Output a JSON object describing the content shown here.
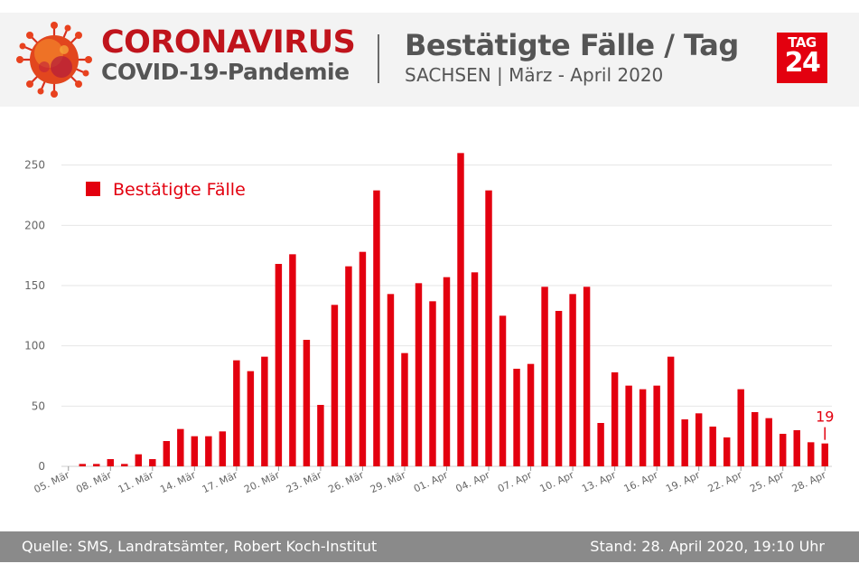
{
  "header": {
    "title_main": "CORONAVIRUS",
    "title_sub": "COVID-19-Pandemie",
    "chart_title": "Bestätigte Fälle / Tag",
    "chart_subtitle": "SACHSEN | März - April 2020",
    "logo_top": "TAG",
    "logo_bottom": "24",
    "logo_icon": "virus-icon"
  },
  "footer": {
    "source": "Quelle: SMS, Landratsämter, Robert Koch-Institut",
    "stand": "Stand: 28. April 2020, 19:10 Uhr"
  },
  "colors": {
    "bar": "#e3000f",
    "title_red": "#c0141c",
    "text_gray": "#555555",
    "grid": "#e6e6e6",
    "footer_bg": "#8a8a8a"
  },
  "chart_data": {
    "type": "bar",
    "categories": [
      "05. Mär",
      "06. Mär",
      "07. Mär",
      "08. Mär",
      "09. Mär",
      "10. Mär",
      "11. Mär",
      "12. Mär",
      "13. Mär",
      "14. Mär",
      "15. Mär",
      "16. Mär",
      "17. Mär",
      "18. Mär",
      "19. Mär",
      "20. Mär",
      "21. Mär",
      "22. Mär",
      "23. Mär",
      "24. Mär",
      "25. Mär",
      "26. Mär",
      "27. Mär",
      "28. Mär",
      "29. Mär",
      "30. Mär",
      "31. Mär",
      "01. Apr",
      "02. Apr",
      "03. Apr",
      "04. Apr",
      "05. Apr",
      "06. Apr",
      "07. Apr",
      "08. Apr",
      "09. Apr",
      "10. Apr",
      "11. Apr",
      "12. Apr",
      "13. Apr",
      "14. Apr",
      "15. Apr",
      "16. Apr",
      "17. Apr",
      "18. Apr",
      "19. Apr",
      "20. Apr",
      "21. Apr",
      "22. Apr",
      "23. Apr",
      "24. Apr",
      "25. Apr",
      "26. Apr",
      "27. Apr",
      "28. Apr"
    ],
    "tick_labels": [
      "05. Mär",
      "08. Mär",
      "11. Mär",
      "14. Mär",
      "17. Mär",
      "20. Mär",
      "23. Mär",
      "26. Mär",
      "29. Mär",
      "01. Apr",
      "04. Apr",
      "07. Apr",
      "10. Apr",
      "13. Apr",
      "16. Apr",
      "19. Apr",
      "22. Apr",
      "25. Apr",
      "28. Apr"
    ],
    "tick_every": 3,
    "series": [
      {
        "name": "Bestätigte Fälle",
        "values": [
          0,
          2,
          2,
          6,
          2,
          10,
          6,
          21,
          31,
          25,
          25,
          29,
          88,
          79,
          91,
          168,
          176,
          105,
          51,
          134,
          166,
          178,
          229,
          143,
          94,
          152,
          137,
          157,
          260,
          161,
          229,
          125,
          81,
          85,
          149,
          129,
          143,
          149,
          36,
          78,
          67,
          64,
          67,
          91,
          39,
          44,
          33,
          24,
          64,
          45,
          40,
          27,
          30,
          20,
          19
        ]
      }
    ],
    "ylim": [
      0,
      270
    ],
    "yticks": [
      0,
      50,
      100,
      150,
      200,
      250
    ],
    "grid": true,
    "legend": "top-left",
    "annotation": {
      "category": "28. Apr",
      "text": "19"
    }
  }
}
